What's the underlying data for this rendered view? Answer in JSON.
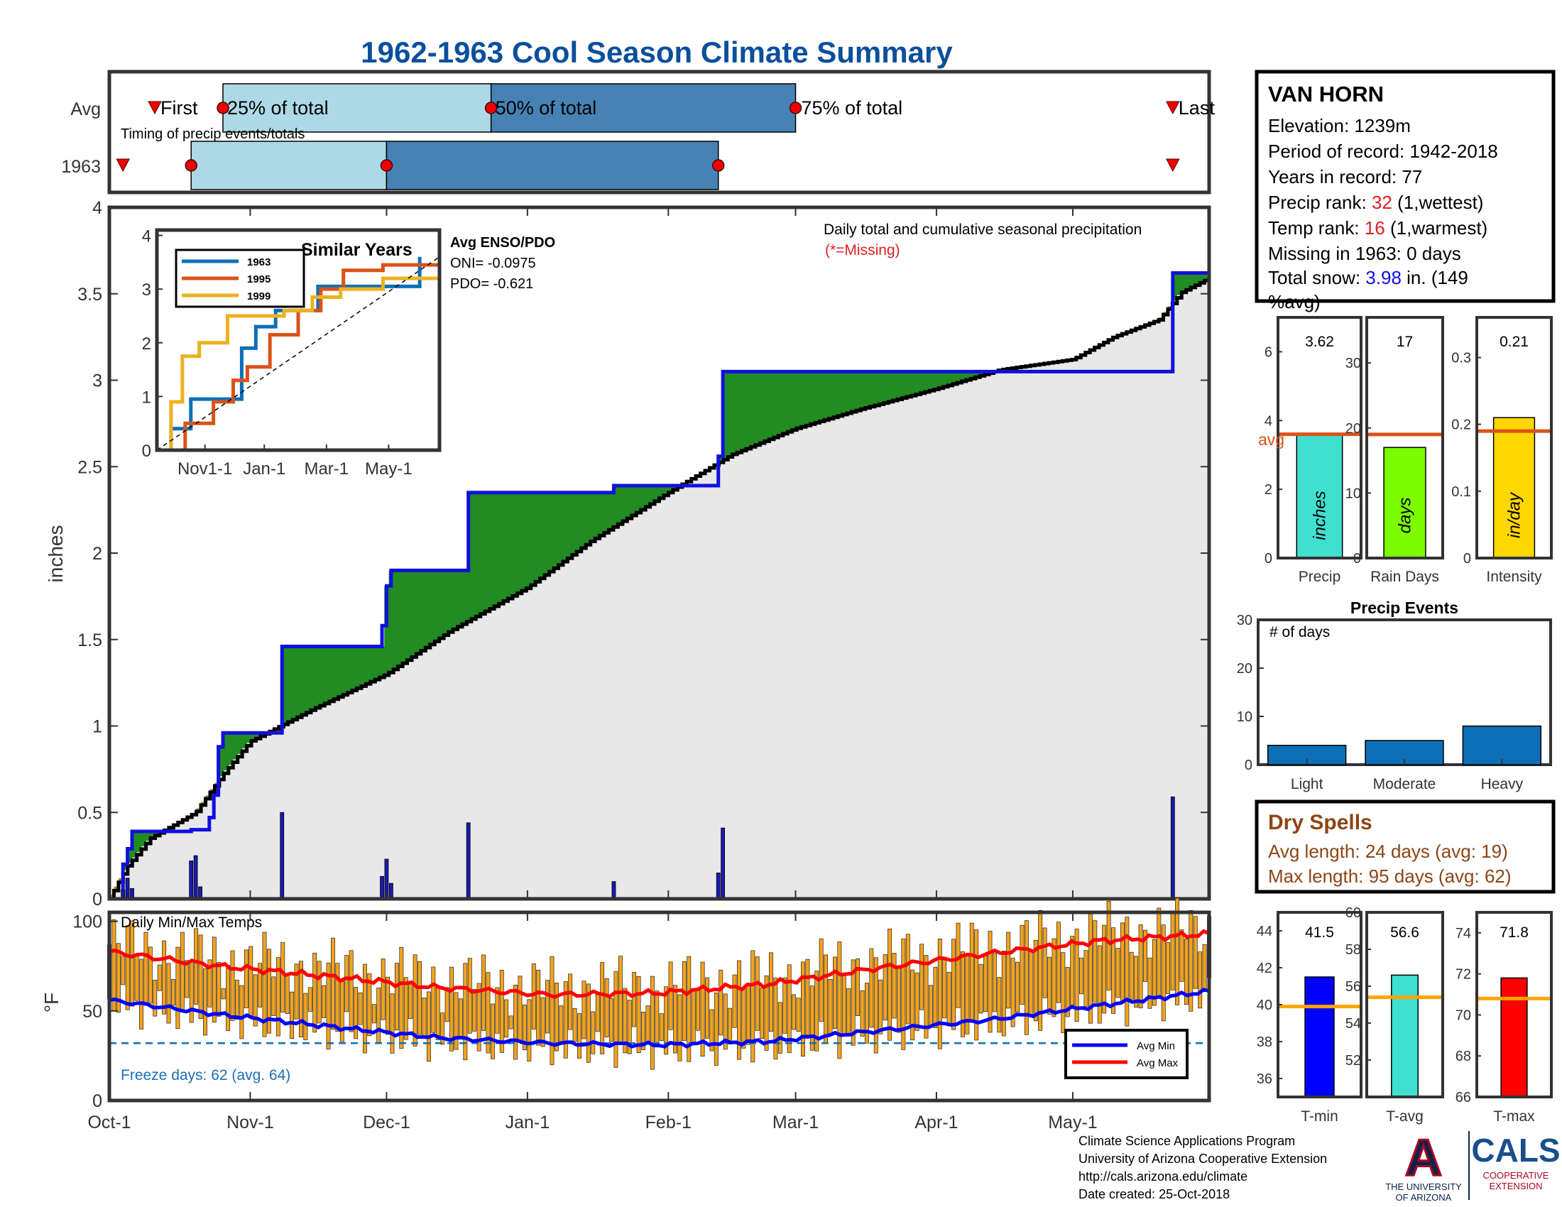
{
  "title": "1962-1963 Cool Season Climate Summary",
  "colors": {
    "title": "#0b4f9c",
    "light_blue": "#add8e6",
    "steel_blue": "#4682b4",
    "green": "#228b22",
    "brown": "#b8860b",
    "gray_fill": "#e8e8e8",
    "orange": "#ffa500",
    "bar_blue": "#0b70b8",
    "red": "#ff0000",
    "blue": "#0000ff"
  },
  "timing": {
    "row_labels": [
      "Avg",
      "1963"
    ],
    "label_first": "First",
    "label_25": "25% of total",
    "label_50": "50% of total",
    "label_75": "75% of total",
    "label_last": "Last",
    "caption": "Timing of precip events/totals",
    "avg": {
      "first": "1962-10-11",
      "p25": "1962-10-26",
      "p50": "1962-12-24",
      "p75": "1963-03-01",
      "last": "1963-05-23"
    },
    "y1963": {
      "first": "1962-10-04",
      "p25": "1962-10-19",
      "p50": "1962-12-01",
      "p75": "1963-02-12",
      "last": "1963-05-23"
    }
  },
  "station": {
    "name": "VAN HORN",
    "elevation": "Elevation: 1239m",
    "period": "Period of record: 1942-2018",
    "years": "Years in record: 77",
    "precip_rank_label": "Precip rank: ",
    "precip_rank_value": "32",
    "precip_rank_suffix": " (1,wettest)",
    "temp_rank_label": "Temp rank: ",
    "temp_rank_value": "16",
    "temp_rank_suffix": " (1,warmest)",
    "missing": "Missing in 1963: 0 days",
    "snow_label": "Total snow: ",
    "snow_value": "3.98",
    "snow_suffix_1": " in. (149",
    "snow_suffix_2": "%avg)"
  },
  "main_chart": {
    "ylabel": "inches",
    "note": "Daily total and cumulative seasonal precipitation",
    "missing_note": "(*=Missing)",
    "y_ticks": [
      "0",
      "0.5",
      "1",
      "1.5",
      "2",
      "2.5",
      "3",
      "3.5",
      "4"
    ],
    "x_ticks": [
      "Oct-1",
      "Nov-1",
      "Dec-1",
      "Jan-1",
      "Feb-1",
      "Mar-1",
      "Apr-1",
      "May-1"
    ]
  },
  "inset": {
    "title": "Similar Years",
    "legend": [
      "1963",
      "1995",
      "1999"
    ],
    "x_ticks": [
      "Nov1-1",
      "Jan-1",
      "Mar-1",
      "May-1"
    ],
    "y_ticks": [
      "0",
      "1",
      "2",
      "3",
      "4"
    ],
    "enso_title": "Avg ENSO/PDO",
    "oni": "ONI= -0.0975",
    "pdo": "PDO= -0.621"
  },
  "temp_chart": {
    "title": "Daily Min/Max Temps",
    "ylabel": "°F",
    "y_ticks": [
      "0",
      "50",
      "100"
    ],
    "freeze": "Freeze days: 62 (avg. 64)",
    "legend_min": "Avg Min",
    "legend_max": "Avg Max"
  },
  "side_bars": {
    "precip": {
      "label": "Precip",
      "unit": "inches",
      "value_text": "3.62",
      "avg_label": "avg",
      "ticks": [
        "0",
        "2",
        "4",
        "6"
      ]
    },
    "raindays": {
      "label": "Rain Days",
      "unit": "days",
      "value_text": "17",
      "ticks": [
        "0",
        "10",
        "20",
        "30"
      ]
    },
    "intensity": {
      "label": "Intensity",
      "unit": "in/day",
      "value_text": "0.21",
      "ticks": [
        "0",
        "0.1",
        "0.2",
        "0.3"
      ]
    }
  },
  "events": {
    "title": "Precip Events",
    "ylabel": "# of days",
    "ticks": [
      "0",
      "10",
      "20",
      "30"
    ],
    "categories": [
      "Light",
      "Moderate",
      "Heavy"
    ]
  },
  "dry_spells": {
    "title": "Dry Spells",
    "avg": "Avg length: 24 days (avg: 19)",
    "max": "Max length: 95 days (avg: 62)"
  },
  "temp_bars": {
    "tmin": {
      "label": "T-min",
      "value_text": "41.5",
      "ticks": [
        "36",
        "38",
        "40",
        "42",
        "44"
      ]
    },
    "tavg": {
      "label": "T-avg",
      "value_text": "56.6",
      "ticks": [
        "52",
        "54",
        "56",
        "58",
        "60"
      ]
    },
    "tmax": {
      "label": "T-max",
      "value_text": "71.8",
      "ticks": [
        "66",
        "68",
        "70",
        "72",
        "74"
      ]
    }
  },
  "footer": {
    "line1": "Climate Science Applications Program",
    "line2": "University of Arizona Cooperative Extension",
    "line3": "http://cals.arizona.edu/climate",
    "line4": " Date created: 25-Oct-2018",
    "logo_a": "A",
    "logo_univ1": "THE UNIVERSITY",
    "logo_univ2": "OF ARIZONA",
    "logo_cals": "CALS",
    "logo_coop1": "COOPERATIVE",
    "logo_coop2": "EXTENSION"
  },
  "chart_data": [
    {
      "type": "area",
      "title": "",
      "xlabel": "",
      "ylabel": "inches",
      "ylim": [
        0,
        4
      ],
      "x_range": [
        "1962-10-01",
        "1963-05-31"
      ],
      "series": [
        {
          "name": "",
          "step_points": [
            [
              "1962-10-01",
              0
            ],
            [
              "1962-10-04",
              0.2
            ],
            [
              "1962-10-05",
              0.29
            ],
            [
              "1962-10-06",
              0.39
            ],
            [
              "1962-10-19",
              0.4
            ],
            [
              "1962-10-23",
              0.47
            ],
            [
              "1962-10-24",
              0.6
            ],
            [
              "1962-10-25",
              0.88
            ],
            [
              "1962-10-26",
              0.96
            ],
            [
              "1962-11-08",
              1.46
            ],
            [
              "1962-11-30",
              1.58
            ],
            [
              "1962-12-01",
              1.81
            ],
            [
              "1962-12-02",
              1.9
            ],
            [
              "1962-12-19",
              2.35
            ],
            [
              "1963-01-20",
              2.39
            ],
            [
              "1963-02-12",
              2.56
            ],
            [
              "1963-02-13",
              3.05
            ],
            [
              "1963-05-23",
              3.62
            ]
          ]
        },
        {
          "name": "",
          "points": [
            [
              "1962-10-01",
              0
            ],
            [
              "1962-10-05",
              0.19
            ],
            [
              "1962-10-10",
              0.35
            ],
            [
              "1962-10-20",
              0.5
            ],
            [
              "1962-10-26",
              0.72
            ],
            [
              "1962-11-01",
              0.91
            ],
            [
              "1962-11-15",
              1.1
            ],
            [
              "1962-12-01",
              1.3
            ],
            [
              "1962-12-15",
              1.55
            ],
            [
              "1963-01-01",
              1.8
            ],
            [
              "1963-01-15",
              2.07
            ],
            [
              "1963-02-01",
              2.35
            ],
            [
              "1963-02-15",
              2.57
            ],
            [
              "1963-03-01",
              2.72
            ],
            [
              "1963-03-15",
              2.83
            ],
            [
              "1963-04-01",
              2.95
            ],
            [
              "1963-04-15",
              3.06
            ],
            [
              "1963-05-01",
              3.12
            ],
            [
              "1963-05-10",
              3.25
            ],
            [
              "1963-05-20",
              3.35
            ],
            [
              "1963-05-25",
              3.51
            ],
            [
              "1963-05-31",
              3.59
            ]
          ]
        }
      ],
      "daily_bars": [
        [
          "1962-10-04",
          0.05
        ],
        [
          "1962-10-05",
          0.12
        ],
        [
          "1962-10-06",
          0.06
        ],
        [
          "1962-10-19",
          0.22
        ],
        [
          "1962-10-20",
          0.25
        ],
        [
          "1962-10-21",
          0.07
        ],
        [
          "1962-11-08",
          0.5
        ],
        [
          "1962-11-30",
          0.13
        ],
        [
          "1962-12-01",
          0.23
        ],
        [
          "1962-12-02",
          0.09
        ],
        [
          "1962-12-19",
          0.44
        ],
        [
          "1963-01-20",
          0.1
        ],
        [
          "1963-02-12",
          0.15
        ],
        [
          "1963-02-13",
          0.41
        ],
        [
          "1963-05-23",
          0.59
        ]
      ]
    },
    {
      "type": "line",
      "title": "Similar Years",
      "ylim": [
        0,
        4
      ],
      "series": [
        {
          "name": "1963",
          "points": [
            [
              0,
              0
            ],
            [
              0.05,
              0.4
            ],
            [
              0.12,
              0.95
            ],
            [
              0.3,
              1.9
            ],
            [
              0.35,
              2.3
            ],
            [
              0.42,
              2.6
            ],
            [
              0.57,
              3.05
            ],
            [
              0.72,
              3.05
            ],
            [
              0.93,
              3.6
            ]
          ]
        },
        {
          "name": "1995",
          "points": [
            [
              0,
              0
            ],
            [
              0.1,
              0.5
            ],
            [
              0.2,
              0.9
            ],
            [
              0.27,
              1.3
            ],
            [
              0.32,
              1.55
            ],
            [
              0.4,
              2.15
            ],
            [
              0.5,
              2.6
            ],
            [
              0.58,
              3.0
            ],
            [
              0.66,
              3.35
            ],
            [
              0.8,
              3.45
            ],
            [
              1.0,
              3.95
            ]
          ]
        },
        {
          "name": "1999",
          "points": [
            [
              0,
              0
            ],
            [
              0.05,
              0.9
            ],
            [
              0.09,
              1.75
            ],
            [
              0.15,
              2.0
            ],
            [
              0.25,
              2.5
            ],
            [
              0.45,
              2.6
            ],
            [
              0.55,
              2.85
            ],
            [
              0.65,
              3.0
            ],
            [
              0.8,
              3.2
            ],
            [
              1.0,
              3.5
            ]
          ]
        },
        {
          "name": "",
          "points": [
            [
              0,
              0
            ],
            [
              1,
              3.6
            ]
          ]
        }
      ]
    },
    {
      "type": "bar",
      "title": "",
      "categories": [
        "Precip",
        "Rain Days",
        "Intensity"
      ],
      "values": [
        3.62,
        17,
        0.21
      ],
      "avg": [
        3.6,
        19,
        0.19
      ],
      "ylims": [
        [
          0,
          7
        ],
        [
          0,
          37
        ],
        [
          0,
          0.36
        ]
      ]
    },
    {
      "type": "bar",
      "title": "Precip Events",
      "categories": [
        "Light",
        "Moderate",
        "Heavy"
      ],
      "values": [
        4,
        5,
        8
      ],
      "ylim": [
        0,
        30
      ]
    },
    {
      "type": "bar",
      "title": "",
      "categories": [
        "T-min",
        "T-avg",
        "T-max"
      ],
      "values": [
        41.5,
        56.6,
        71.8
      ],
      "avg": [
        39.9,
        55.4,
        70.8
      ],
      "ylims": [
        [
          35,
          45
        ],
        [
          50,
          60
        ],
        [
          66,
          75
        ]
      ]
    },
    {
      "type": "bar",
      "title": "Daily Min/Max Temps",
      "ylim": [
        0,
        105
      ],
      "freeze_line": 32,
      "avg_min_points": [
        [
          0,
          56
        ],
        [
          0.1,
          48
        ],
        [
          0.22,
          40
        ],
        [
          0.3,
          35
        ],
        [
          0.4,
          32
        ],
        [
          0.5,
          31
        ],
        [
          0.6,
          33
        ],
        [
          0.7,
          39
        ],
        [
          0.8,
          45
        ],
        [
          0.9,
          53
        ],
        [
          1.0,
          61
        ]
      ],
      "avg_max_points": [
        [
          0,
          83
        ],
        [
          0.1,
          75
        ],
        [
          0.22,
          68
        ],
        [
          0.3,
          63
        ],
        [
          0.4,
          59
        ],
        [
          0.5,
          60
        ],
        [
          0.6,
          65
        ],
        [
          0.7,
          74
        ],
        [
          0.8,
          82
        ],
        [
          0.9,
          89
        ],
        [
          1.0,
          93
        ]
      ]
    }
  ]
}
